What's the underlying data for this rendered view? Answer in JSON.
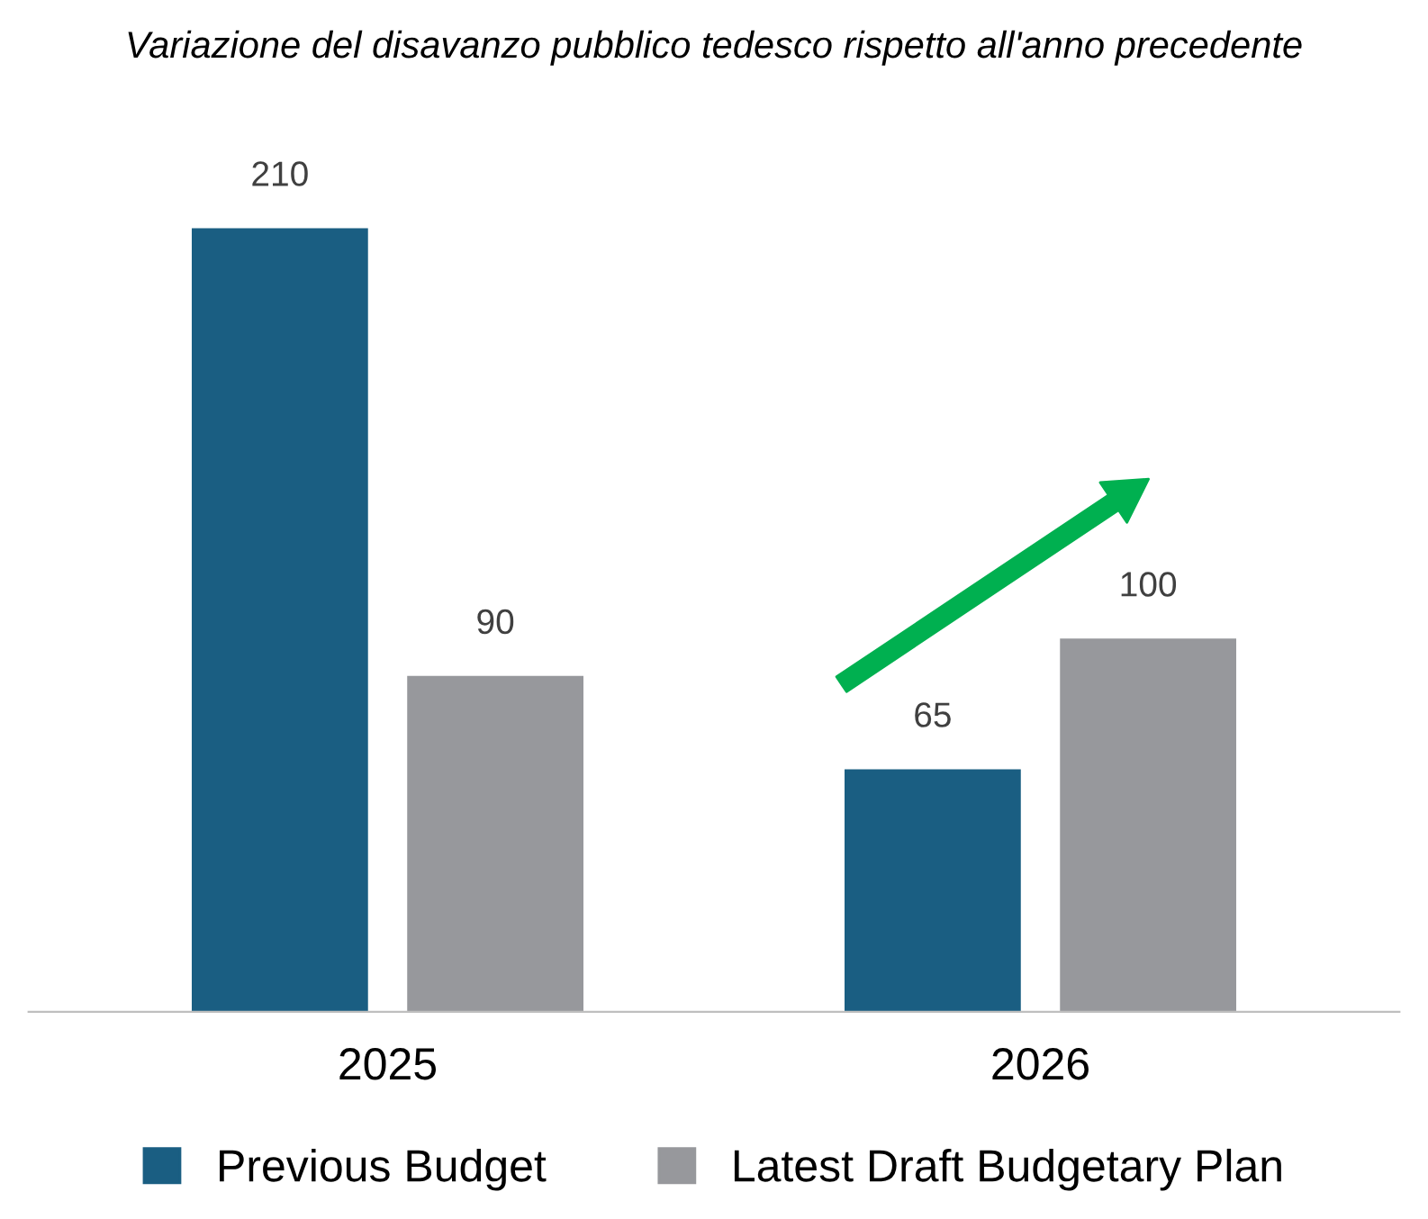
{
  "chart_data": {
    "type": "bar",
    "title": "Variazione del disavanzo pubblico tedesco rispetto all'anno precedente",
    "categories": [
      "2025",
      "2026"
    ],
    "series": [
      {
        "name": "Previous Budget",
        "color": "#1a5e82",
        "values": [
          210,
          65
        ]
      },
      {
        "name": "Latest Draft Budgetary Plan",
        "color": "#97989c",
        "values": [
          90,
          100
        ]
      }
    ],
    "data_labels": true,
    "legend": "bottom",
    "grid": false
  }
}
